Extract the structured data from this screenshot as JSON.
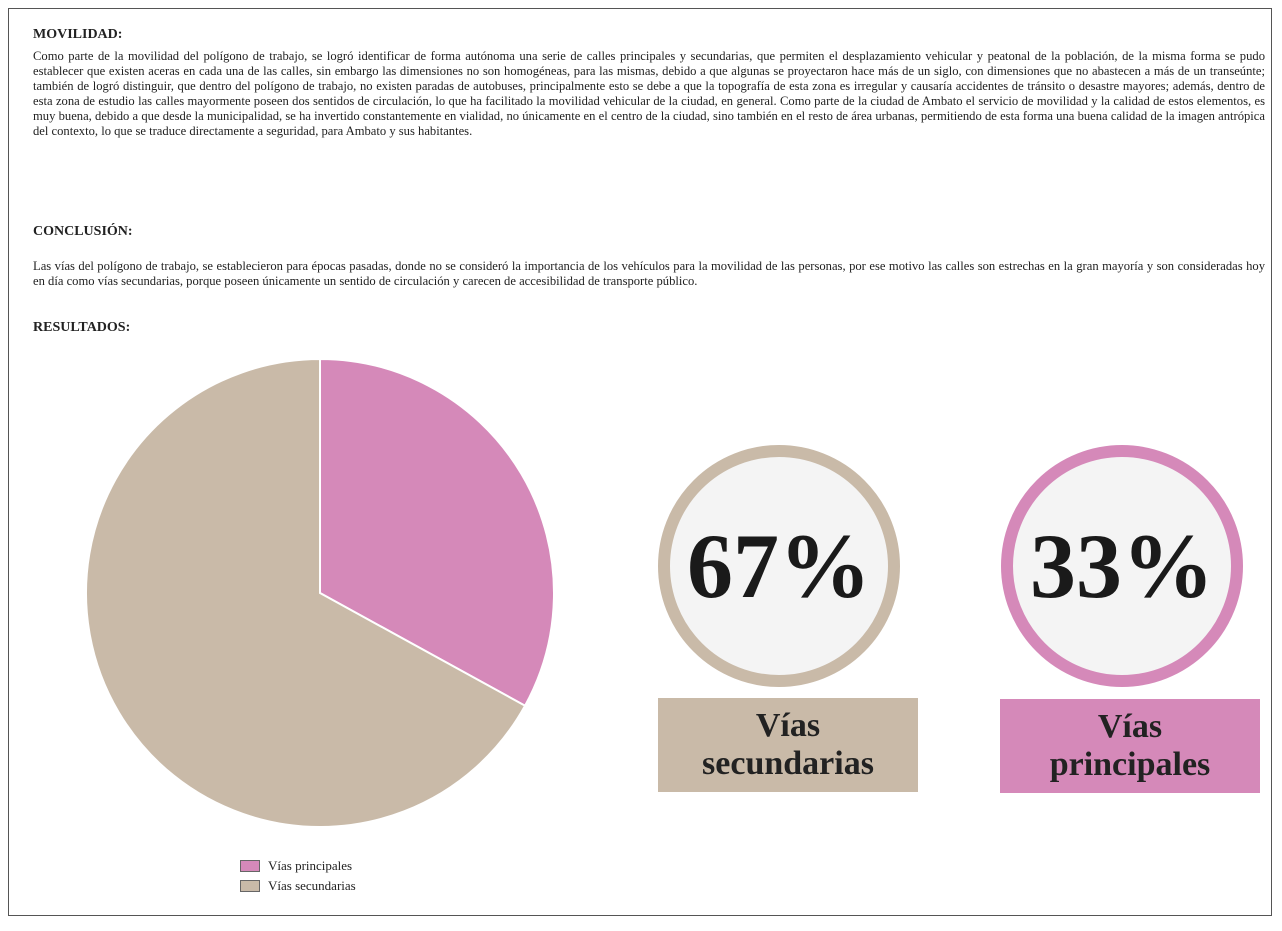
{
  "sections": [
    {
      "heading": "MOVILIDAD:",
      "text": "Como parte de la movilidad del polígono de trabajo, se logró identificar de forma autónoma una serie de calles principales y secundarias, que permiten el desplazamiento vehicular y peatonal de la población, de la misma forma se pudo establecer que existen aceras en cada una de las calles, sin embargo las dimensiones no son homogéneas, para las mismas, debido a que algunas se proyectaron hace más de un siglo, con dimensiones que no abastecen a más de un transeúnte; también de logró distinguir, que dentro del polígono de trabajo, no existen paradas de autobuses, principalmente esto se debe a que la topografía de esta zona es irregular y causaría accidentes de tránsito o desastre mayores; además, dentro de esta zona de estudio las calles mayormente poseen dos sentidos de circulación, lo que ha facilitado la movilidad vehicular de la ciudad, en general. Como parte de la ciudad de Ambato el servicio de movilidad y la calidad de estos elementos, es muy buena, debido a que desde la municipalidad, se ha invertido constantemente en vialidad, no únicamente en el centro de la ciudad, sino también en el resto de área urbanas, permitiendo de esta forma una buena calidad de la imagen antrópica del contexto, lo que se traduce directamente a seguridad, para Ambato y sus habitantes."
    },
    {
      "heading": "CONCLUSIÓN:",
      "text": "Las vías del polígono de trabajo, se establecieron para épocas pasadas, donde no se consideró la importancia de los vehículos para la movilidad de las personas, por ese motivo las calles son estrechas en la gran mayoría y son consideradas hoy en día como vías secundarias, porque poseen únicamente un sentido de circulación y carecen de accesibilidad de transporte público."
    },
    {
      "heading": "RESULTADOS:"
    }
  ],
  "chart_data": {
    "type": "pie",
    "categories": [
      "Vías principales",
      "Vías secundarias"
    ],
    "values": [
      33,
      67
    ],
    "value_labels": [
      "33%",
      "67%"
    ],
    "colors": [
      "#d589b9",
      "#c9baa8"
    ]
  }
}
